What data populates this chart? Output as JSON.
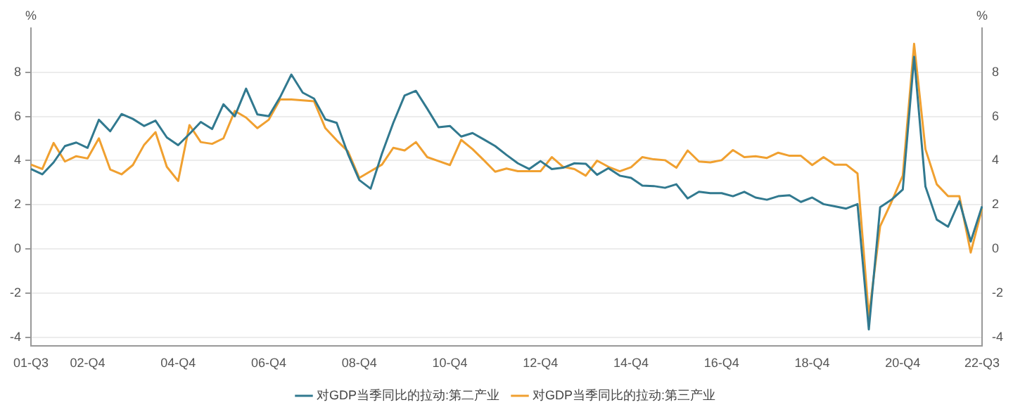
{
  "chart_data": {
    "type": "line",
    "categories": [
      "01-Q3",
      null,
      null,
      null,
      null,
      "02-Q4",
      null,
      null,
      null,
      null,
      null,
      null,
      null,
      "04-Q4",
      null,
      null,
      null,
      null,
      null,
      null,
      null,
      "06-Q4",
      null,
      null,
      null,
      null,
      null,
      null,
      null,
      "08-Q4",
      null,
      null,
      null,
      null,
      null,
      null,
      null,
      "10-Q4",
      null,
      null,
      null,
      null,
      null,
      null,
      null,
      "12-Q4",
      null,
      null,
      null,
      null,
      null,
      null,
      null,
      "14-Q4",
      null,
      null,
      null,
      null,
      null,
      null,
      null,
      "16-Q4",
      null,
      null,
      null,
      null,
      null,
      null,
      null,
      "18-Q4",
      null,
      null,
      null,
      null,
      null,
      null,
      null,
      "20-Q4",
      null,
      null,
      null,
      null,
      null,
      null,
      "22-Q3"
    ],
    "series": [
      {
        "name": "对GDP当季同比的拉动:第二产业",
        "color": "#31798f",
        "values": [
          3.62,
          3.38,
          3.92,
          4.66,
          4.82,
          4.58,
          5.85,
          5.33,
          6.11,
          5.89,
          5.57,
          5.81,
          5.05,
          4.7,
          5.21,
          5.75,
          5.43,
          6.55,
          6.01,
          7.26,
          6.09,
          6.01,
          6.87,
          7.9,
          7.08,
          6.81,
          5.87,
          5.71,
          4.3,
          3.12,
          2.73,
          4.32,
          5.71,
          6.95,
          7.16,
          6.35,
          5.51,
          5.57,
          5.09,
          5.25,
          4.96,
          4.66,
          4.26,
          3.88,
          3.62,
          3.98,
          3.62,
          3.68,
          3.88,
          3.86,
          3.36,
          3.66,
          3.32,
          3.22,
          2.87,
          2.85,
          2.77,
          2.93,
          2.29,
          2.59,
          2.53,
          2.53,
          2.39,
          2.59,
          2.33,
          2.23,
          2.39,
          2.43,
          2.13,
          2.33,
          2.03,
          1.93,
          1.83,
          2.03,
          -3.64,
          1.89,
          2.23,
          2.69,
          8.7,
          2.83,
          1.33,
          1.01,
          2.17,
          0.34,
          1.93
        ]
      },
      {
        "name": "对GDP当季同比的拉动:第三产业",
        "color": "#f0a030",
        "values": [
          3.82,
          3.62,
          4.8,
          3.96,
          4.2,
          4.1,
          5.01,
          3.6,
          3.38,
          3.8,
          4.72,
          5.29,
          3.72,
          3.08,
          5.61,
          4.84,
          4.76,
          5.01,
          6.25,
          5.95,
          5.47,
          5.85,
          6.77,
          6.77,
          6.73,
          6.69,
          5.47,
          4.92,
          4.42,
          3.22,
          3.52,
          3.82,
          4.58,
          4.46,
          4.84,
          4.16,
          3.98,
          3.8,
          4.94,
          4.52,
          4.02,
          3.5,
          3.64,
          3.52,
          3.52,
          3.52,
          4.16,
          3.72,
          3.62,
          3.32,
          4.0,
          3.72,
          3.52,
          3.7,
          4.16,
          4.06,
          4.02,
          3.68,
          4.46,
          3.96,
          3.92,
          4.02,
          4.48,
          4.16,
          4.2,
          4.12,
          4.36,
          4.22,
          4.22,
          3.8,
          4.16,
          3.82,
          3.82,
          3.42,
          -3.04,
          1.03,
          2.13,
          3.32,
          9.29,
          4.52,
          2.93,
          2.39,
          2.39,
          -0.16,
          1.83
        ]
      }
    ],
    "ylabel": "%",
    "y2label": "%",
    "ylim": [
      -4.4,
      10
    ],
    "yticks": [
      -4,
      -2,
      0,
      2,
      4,
      6,
      8
    ],
    "y2lim": [
      -4.4,
      10
    ],
    "y2ticks": [
      -4,
      -2,
      0,
      2,
      4,
      6,
      8
    ],
    "grid": "y",
    "legend": "bottom",
    "marker": "none",
    "line_style": "solid"
  }
}
